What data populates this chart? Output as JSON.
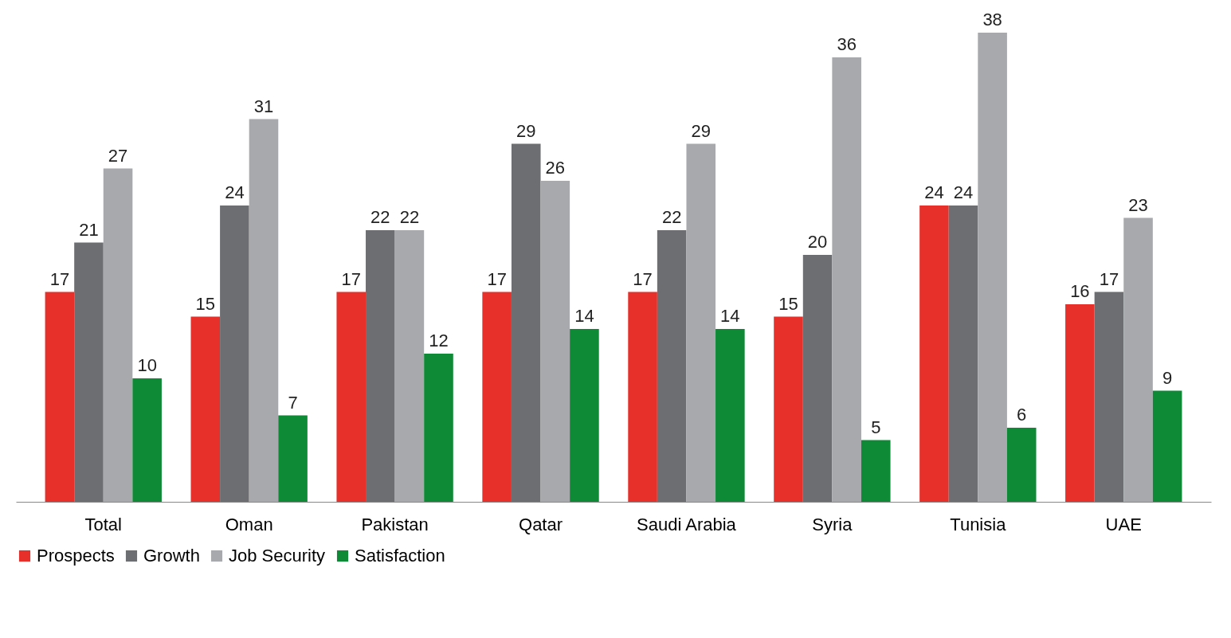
{
  "chart_data": {
    "type": "bar",
    "categories": [
      "Total",
      "Oman",
      "Pakistan",
      "Qatar",
      "Saudi Arabia",
      "Syria",
      "Tunisia",
      "UAE"
    ],
    "series": [
      {
        "name": "Prospects",
        "color": "#e8302a",
        "values": [
          17,
          15,
          17,
          17,
          17,
          15,
          24,
          16
        ]
      },
      {
        "name": "Growth",
        "color": "#6d6e71",
        "values": [
          21,
          24,
          22,
          29,
          22,
          20,
          24,
          17
        ]
      },
      {
        "name": "Job Security",
        "color": "#a7a9ac",
        "values": [
          27,
          31,
          22,
          26,
          29,
          36,
          38,
          23
        ]
      },
      {
        "name": "Satisfaction",
        "color": "#0e8a36",
        "values": [
          10,
          7,
          12,
          14,
          14,
          5,
          6,
          9
        ]
      }
    ],
    "data_labels": true,
    "legend": "bottom",
    "grid": false
  }
}
